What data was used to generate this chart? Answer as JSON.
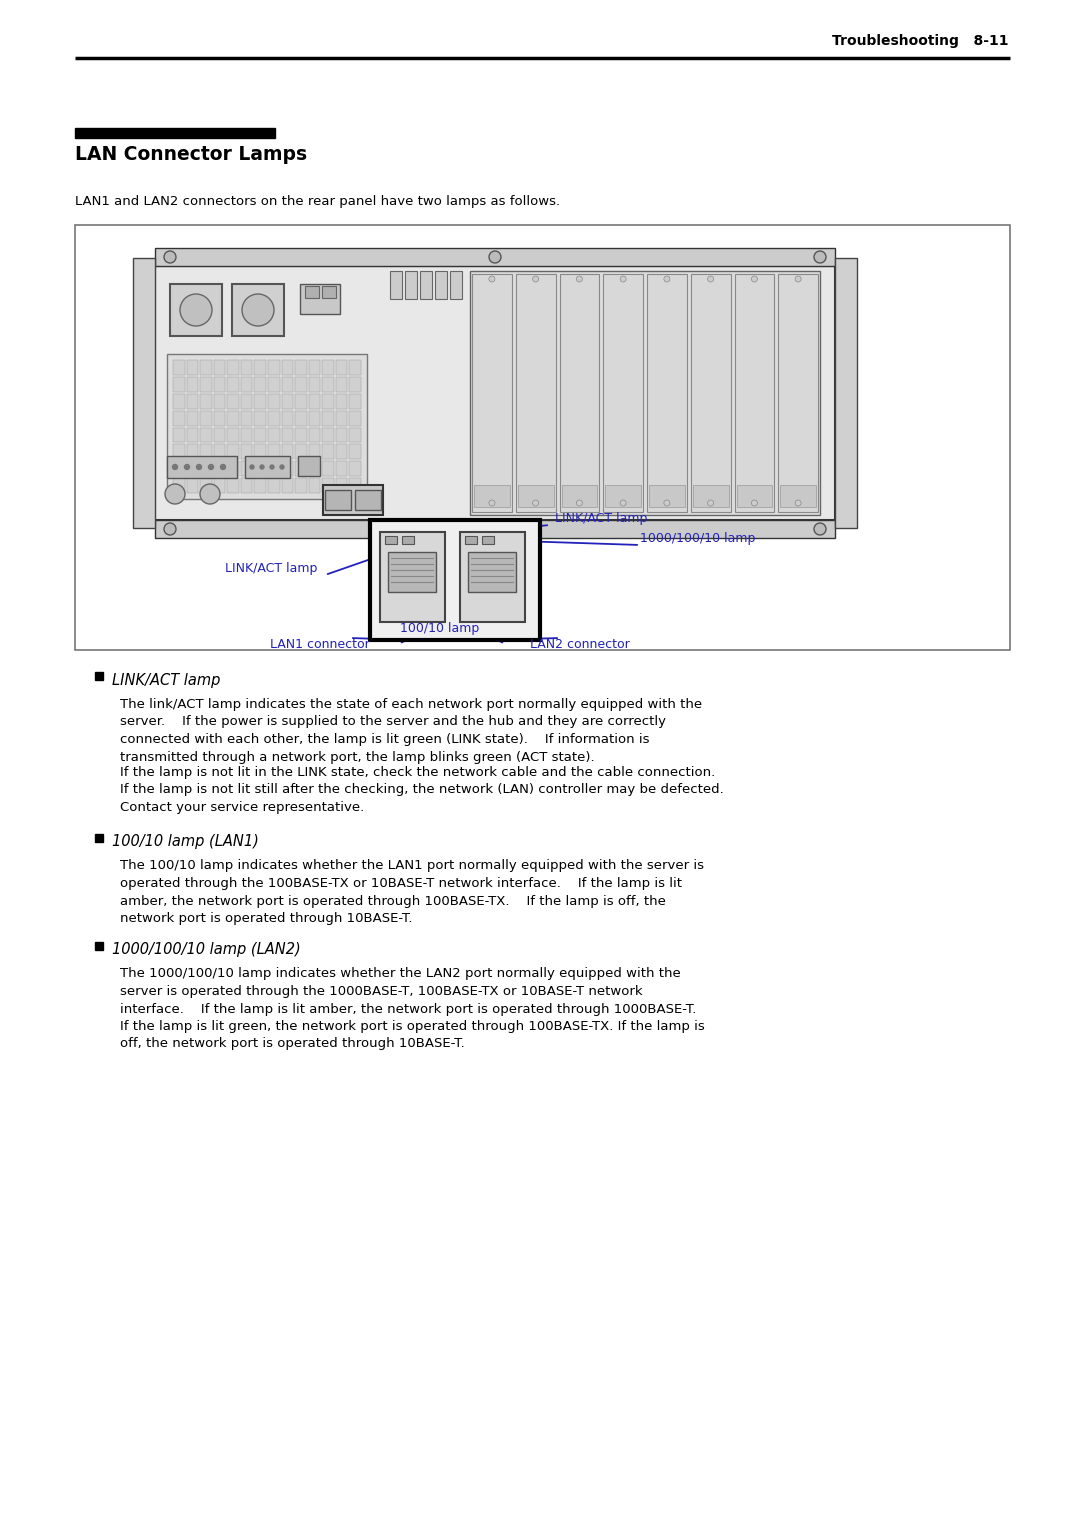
{
  "page_header_text": "Troubleshooting   8-11",
  "section_title": "LAN Connector Lamps",
  "intro_text": "LAN1 and LAN2 connectors on the rear panel have two lamps as follows.",
  "bullet_items": [
    {
      "title": "LINK/ACT lamp",
      "paragraphs": [
        "The link/ACT lamp indicates the state of each network port normally equipped with the\nserver.    If the power is supplied to the server and the hub and they are correctly\nconnected with each other, the lamp is lit green (LINK state).    If information is\ntransmitted through a network port, the lamp blinks green (ACT state).",
        "If the lamp is not lit in the LINK state, check the network cable and the cable connection.\nIf the lamp is not lit still after the checking, the network (LAN) controller may be defected.\nContact your service representative."
      ]
    },
    {
      "title": "100/10 lamp (LAN1)",
      "paragraphs": [
        "The 100/10 lamp indicates whether the LAN1 port normally equipped with the server is\noperated through the 100BASE-TX or 10BASE-T network interface.    If the lamp is lit\namber, the network port is operated through 100BASE-TX.    If the lamp is off, the\nnetwork port is operated through 10BASE-T."
      ]
    },
    {
      "title": "1000/100/10 lamp (LAN2)",
      "paragraphs": [
        "The 1000/100/10 lamp indicates whether the LAN2 port normally equipped with the\nserver is operated through the 1000BASE-T, 100BASE-TX or 10BASE-T network\ninterface.    If the lamp is lit amber, the network port is operated through 1000BASE-T.\nIf the lamp is lit green, the network port is operated through 100BASE-TX. If the lamp is\noff, the network port is operated through 10BASE-T."
      ]
    }
  ],
  "bg_color": "#ffffff",
  "text_color": "#000000",
  "blue_color": "#2222bb",
  "header_font_size": 10,
  "title_font_size": 13.5,
  "body_font_size": 9.5,
  "bullet_title_font_size": 10.5
}
